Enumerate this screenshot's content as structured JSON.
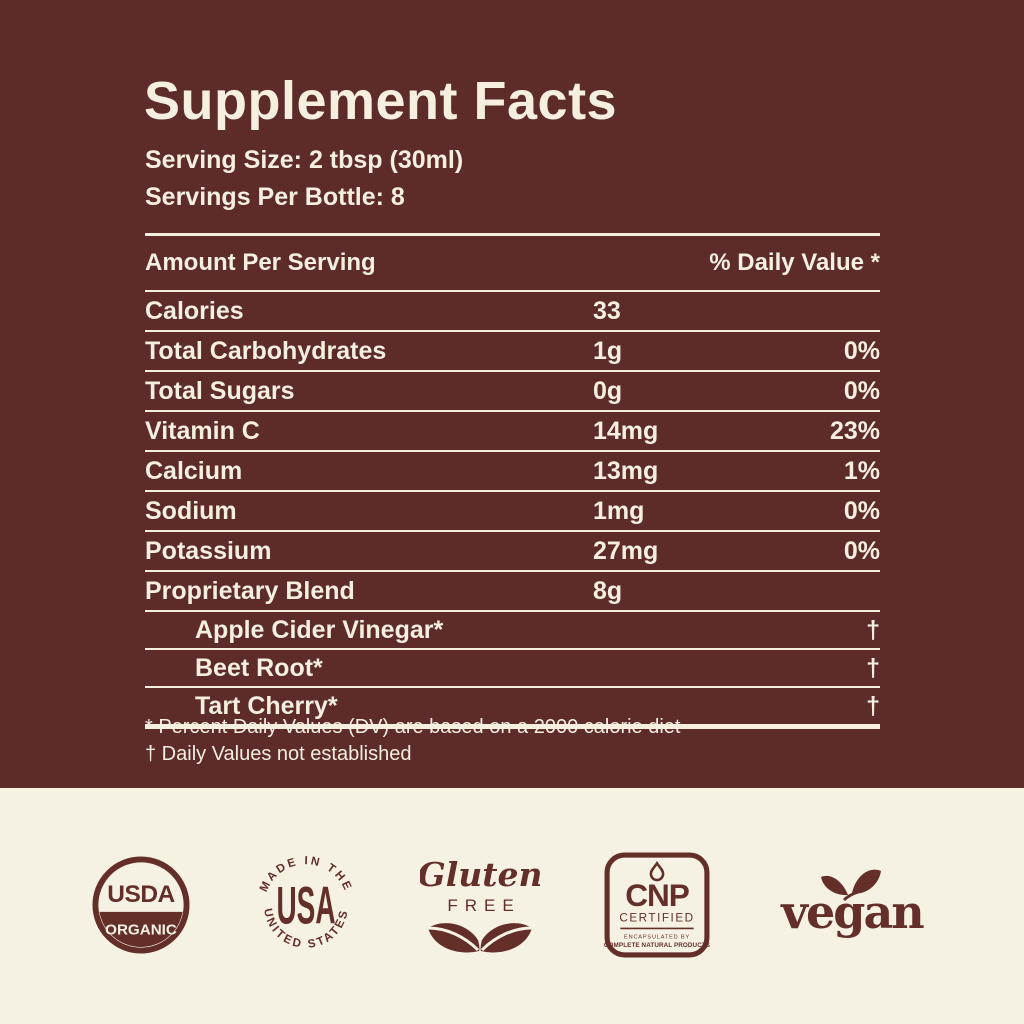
{
  "colors": {
    "panel_top_bg": "#5D2B29",
    "cream_text": "#F4EFE0",
    "panel_bottom_bg": "#F6F2E3",
    "badge_maroon": "#642E29"
  },
  "header": {
    "title": "Supplement Facts",
    "serving_size": "Serving Size: 2 tbsp (30ml)",
    "servings_per_bottle": "Servings Per Bottle: 8"
  },
  "table": {
    "amount_header": "Amount Per Serving",
    "dv_header": "% Daily Value *",
    "rows": [
      {
        "name": "Calories",
        "amount": "33",
        "dv": "",
        "indent": false
      },
      {
        "name": "Total Carbohydrates",
        "amount": "1g",
        "dv": "0%",
        "indent": false
      },
      {
        "name": "Total Sugars",
        "amount": "0g",
        "dv": "0%",
        "indent": false
      },
      {
        "name": "Vitamin C",
        "amount": "14mg",
        "dv": "23%",
        "indent": false
      },
      {
        "name": "Calcium",
        "amount": "13mg",
        "dv": "1%",
        "indent": false
      },
      {
        "name": "Sodium",
        "amount": "1mg",
        "dv": "0%",
        "indent": false
      },
      {
        "name": "Potassium",
        "amount": "27mg",
        "dv": "0%",
        "indent": false
      },
      {
        "name": "Proprietary Blend",
        "amount": "8g",
        "dv": "",
        "indent": false
      },
      {
        "name": "Apple Cider Vinegar*",
        "amount": "",
        "dv": "†",
        "indent": true
      },
      {
        "name": "Beet Root*",
        "amount": "",
        "dv": "†",
        "indent": true
      },
      {
        "name": "Tart Cherry*",
        "amount": "",
        "dv": "†",
        "indent": true
      }
    ]
  },
  "footnotes": {
    "line1": "* Percent Daily Values (DV) are based on a 2000 calorie diet",
    "line2": "† Daily Values not established"
  },
  "badges": {
    "usda": {
      "line1": "USDA",
      "line2": "ORGANIC"
    },
    "made_in_usa": {
      "top": "MADE IN THE",
      "center": "USA",
      "bottom": "UNITED STATES"
    },
    "gluten_free": {
      "line1": "Gluten",
      "line2": "FREE"
    },
    "cnp": {
      "logo": "CNP",
      "certified": "CERTIFIED",
      "sub1": "ENCAPSULATED BY",
      "sub2": "COMPLETE NATURAL PRODUCTS"
    },
    "vegan": {
      "text": "vegan"
    }
  }
}
